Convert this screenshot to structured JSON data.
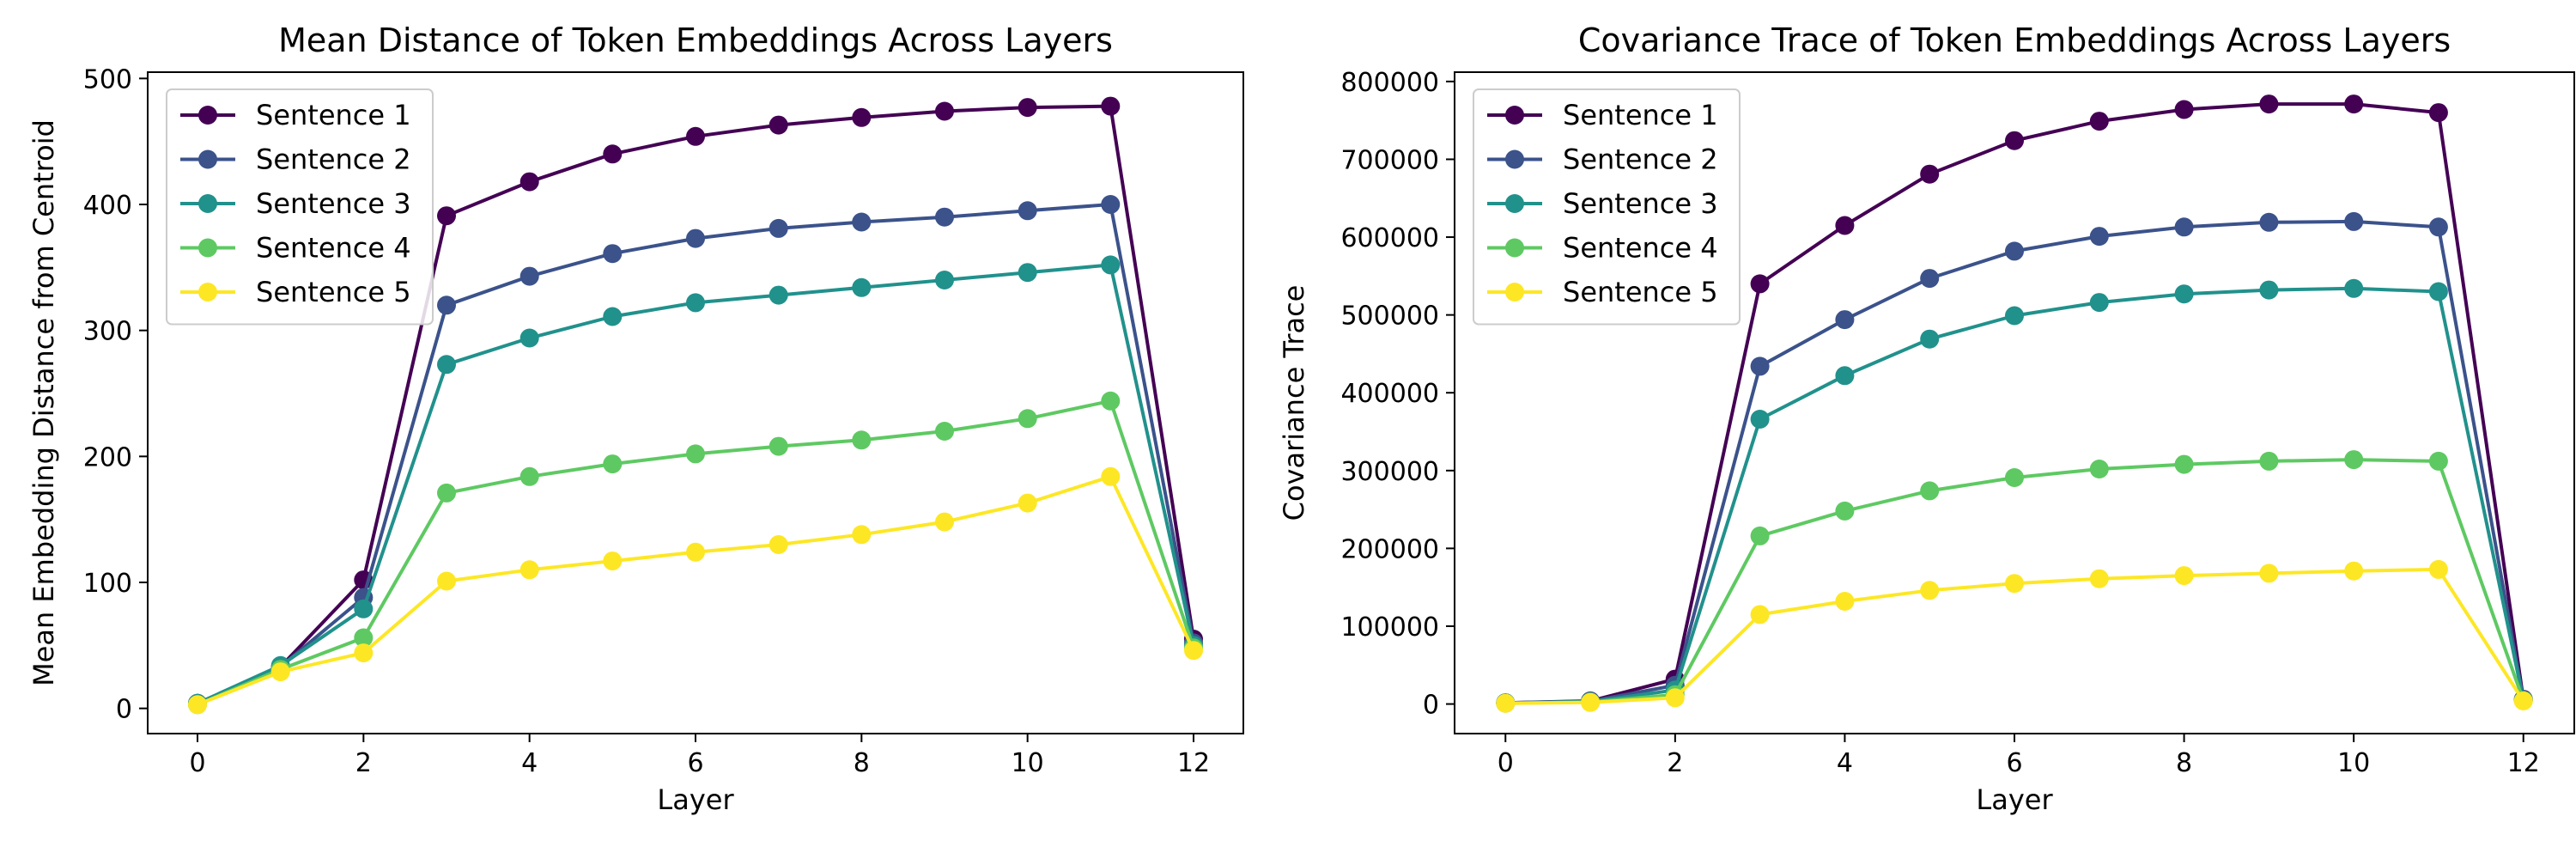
{
  "chart_data": [
    {
      "type": "line",
      "title": "Mean Distance of Token Embeddings Across Layers",
      "xlabel": "Layer",
      "ylabel": "Mean Embedding Distance from Centroid",
      "xlim": [
        -0.6,
        12.6
      ],
      "ylim": [
        -20,
        505
      ],
      "xticks": [
        0,
        2,
        4,
        6,
        8,
        10,
        12
      ],
      "yticks": [
        0,
        100,
        200,
        300,
        400,
        500
      ],
      "legend": "top-left",
      "grid": false,
      "x": [
        0,
        1,
        2,
        3,
        4,
        5,
        6,
        7,
        8,
        9,
        10,
        11,
        12
      ],
      "series": [
        {
          "name": "Sentence 1",
          "color": "#440154",
          "values": [
            4,
            33,
            102,
            391,
            418,
            440,
            454,
            463,
            469,
            474,
            477,
            478,
            55
          ]
        },
        {
          "name": "Sentence 2",
          "color": "#3b528b",
          "values": [
            4,
            33,
            88,
            320,
            343,
            361,
            373,
            381,
            386,
            390,
            395,
            400,
            52
          ]
        },
        {
          "name": "Sentence 3",
          "color": "#21918c",
          "values": [
            4,
            34,
            79,
            273,
            294,
            311,
            322,
            328,
            334,
            340,
            346,
            352,
            50
          ]
        },
        {
          "name": "Sentence 4",
          "color": "#5ec962",
          "values": [
            3,
            31,
            56,
            171,
            184,
            194,
            202,
            208,
            213,
            220,
            230,
            244,
            48
          ]
        },
        {
          "name": "Sentence 5",
          "color": "#fde725",
          "values": [
            3,
            29,
            44,
            101,
            110,
            117,
            124,
            130,
            138,
            148,
            163,
            184,
            46
          ]
        }
      ]
    },
    {
      "type": "line",
      "title": "Covariance Trace of Token Embeddings Across Layers",
      "xlabel": "Layer",
      "ylabel": "Covariance Trace",
      "xlim": [
        -0.6,
        12.6
      ],
      "ylim": [
        -38000,
        812000
      ],
      "xticks": [
        0,
        2,
        4,
        6,
        8,
        10,
        12
      ],
      "yticks": [
        0,
        100000,
        200000,
        300000,
        400000,
        500000,
        600000,
        700000,
        800000
      ],
      "legend": "top-left",
      "grid": false,
      "x": [
        0,
        1,
        2,
        3,
        4,
        5,
        6,
        7,
        8,
        9,
        10,
        11,
        12
      ],
      "series": [
        {
          "name": "Sentence 1",
          "color": "#440154",
          "values": [
            1500,
            4000,
            32000,
            540000,
            615000,
            681000,
            724000,
            749000,
            764000,
            771000,
            771000,
            760000,
            6000
          ]
        },
        {
          "name": "Sentence 2",
          "color": "#3b528b",
          "values": [
            1500,
            3500,
            24000,
            434000,
            494000,
            547000,
            582000,
            601000,
            613000,
            619000,
            620000,
            613000,
            5500
          ]
        },
        {
          "name": "Sentence 3",
          "color": "#21918c",
          "values": [
            1500,
            3000,
            18000,
            366000,
            422000,
            469000,
            499000,
            516000,
            527000,
            532000,
            534000,
            530000,
            5000
          ]
        },
        {
          "name": "Sentence 4",
          "color": "#5ec962",
          "values": [
            1000,
            2500,
            12000,
            216000,
            248000,
            274000,
            291000,
            302000,
            308000,
            312000,
            314000,
            312000,
            4500
          ]
        },
        {
          "name": "Sentence 5",
          "color": "#fde725",
          "values": [
            1000,
            2000,
            8000,
            115000,
            132000,
            146000,
            155000,
            161000,
            165000,
            168000,
            171000,
            173000,
            4000
          ]
        }
      ]
    }
  ]
}
